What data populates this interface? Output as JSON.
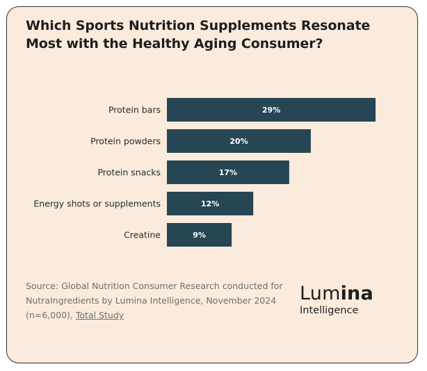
{
  "header": {
    "title": "Which Sports Nutrition Supplements Resonate Most with the Healthy Aging Consumer?"
  },
  "chart_data": {
    "type": "bar",
    "orientation": "horizontal",
    "categories": [
      "Protein bars",
      "Protein powders",
      "Protein snacks",
      "Energy shots or supplements",
      "Creatine"
    ],
    "values": [
      29,
      20,
      17,
      12,
      9
    ],
    "value_labels": [
      "29%",
      "20%",
      "17%",
      "12%",
      "9%"
    ],
    "unit": "%",
    "xlim": [
      0,
      29
    ],
    "grid": false,
    "bar_color": "#264653",
    "label_color": "#ffffff"
  },
  "footer": {
    "source_text": "Source: Global Nutrition Consumer Research conducted for NutraIngredients by Lumina Intelligence, November 2024 (n=6,000), ",
    "source_link": "Total Study"
  },
  "logo": {
    "wordmark_light": "Lum",
    "wordmark_bold": "ina",
    "subtitle": "Intelligence"
  }
}
